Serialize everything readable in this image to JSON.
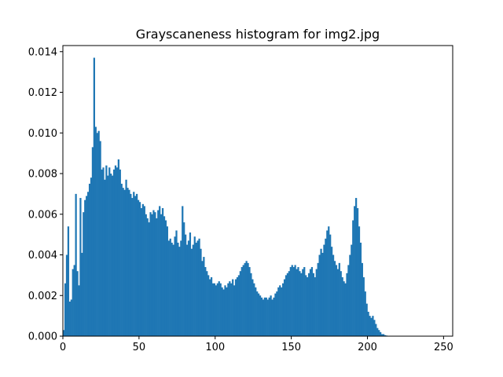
{
  "chart_data": {
    "type": "bar",
    "title": "Grayscaneness histogram for img2.jpg",
    "xlabel": "",
    "ylabel": "",
    "xlim": [
      0,
      256
    ],
    "ylim": [
      0,
      0.0143
    ],
    "grid": false,
    "legend": "none",
    "bar_color": "#1f77b4",
    "x_ticks": [
      0,
      50,
      100,
      150,
      200,
      250
    ],
    "x_tick_labels": [
      "0",
      "50",
      "100",
      "150",
      "200",
      "250"
    ],
    "y_ticks": [
      0.0,
      0.002,
      0.004,
      0.006,
      0.008,
      0.01,
      0.012,
      0.014
    ],
    "y_tick_labels": [
      "0.000",
      "0.002",
      "0.004",
      "0.006",
      "0.008",
      "0.010",
      "0.012",
      "0.014"
    ],
    "bin_start": 0,
    "bin_width": 1,
    "values": [
      0.0003,
      0.0026,
      0.004,
      0.0054,
      0.0017,
      0.0018,
      0.0033,
      0.0035,
      0.007,
      0.0032,
      0.0025,
      0.0068,
      0.0041,
      0.0061,
      0.0067,
      0.0069,
      0.0071,
      0.0075,
      0.0078,
      0.0093,
      0.0137,
      0.0103,
      0.01,
      0.0101,
      0.0096,
      0.0082,
      0.0083,
      0.0077,
      0.0084,
      0.0079,
      0.0083,
      0.008,
      0.0079,
      0.0082,
      0.0084,
      0.0083,
      0.0087,
      0.0082,
      0.0075,
      0.0073,
      0.0072,
      0.0077,
      0.0073,
      0.0072,
      0.007,
      0.0068,
      0.0071,
      0.0069,
      0.007,
      0.0067,
      0.0066,
      0.0063,
      0.0065,
      0.0064,
      0.006,
      0.0058,
      0.0056,
      0.0061,
      0.006,
      0.0062,
      0.0061,
      0.0058,
      0.0062,
      0.0064,
      0.006,
      0.0063,
      0.0059,
      0.0057,
      0.0054,
      0.0047,
      0.0048,
      0.0046,
      0.0045,
      0.0049,
      0.0052,
      0.0046,
      0.0044,
      0.0047,
      0.0064,
      0.0056,
      0.005,
      0.0045,
      0.0047,
      0.0051,
      0.0043,
      0.0045,
      0.0049,
      0.0046,
      0.0047,
      0.0048,
      0.0043,
      0.0037,
      0.0039,
      0.0034,
      0.0032,
      0.003,
      0.0028,
      0.0029,
      0.0026,
      0.0026,
      0.0025,
      0.0026,
      0.0027,
      0.0026,
      0.0024,
      0.0023,
      0.0025,
      0.0024,
      0.0026,
      0.0027,
      0.0026,
      0.0028,
      0.0025,
      0.0028,
      0.0029,
      0.003,
      0.0032,
      0.0034,
      0.0035,
      0.0036,
      0.0037,
      0.0036,
      0.0034,
      0.0031,
      0.0028,
      0.0026,
      0.0024,
      0.0022,
      0.0021,
      0.002,
      0.0019,
      0.0018,
      0.0019,
      0.0019,
      0.0018,
      0.0019,
      0.002,
      0.0018,
      0.0019,
      0.0021,
      0.0022,
      0.0024,
      0.0025,
      0.0024,
      0.0026,
      0.0028,
      0.003,
      0.0031,
      0.0032,
      0.0034,
      0.0035,
      0.0034,
      0.0035,
      0.0033,
      0.0034,
      0.0032,
      0.0031,
      0.0033,
      0.0034,
      0.003,
      0.0029,
      0.0031,
      0.0033,
      0.0034,
      0.0031,
      0.0029,
      0.0033,
      0.0036,
      0.004,
      0.0043,
      0.0041,
      0.0045,
      0.0048,
      0.0052,
      0.0054,
      0.005,
      0.0044,
      0.004,
      0.0037,
      0.0035,
      0.0033,
      0.0036,
      0.0032,
      0.0029,
      0.0027,
      0.0026,
      0.0031,
      0.0035,
      0.004,
      0.0045,
      0.0057,
      0.0064,
      0.0068,
      0.0063,
      0.0054,
      0.0046,
      0.0036,
      0.0029,
      0.0022,
      0.0016,
      0.0012,
      0.001,
      0.0009,
      0.001,
      0.0008,
      0.0006,
      0.0004,
      0.0003,
      0.0002,
      0.0001,
      0.0001,
      5e-05,
      3e-05,
      1e-05,
      0.0,
      0.0
    ]
  }
}
